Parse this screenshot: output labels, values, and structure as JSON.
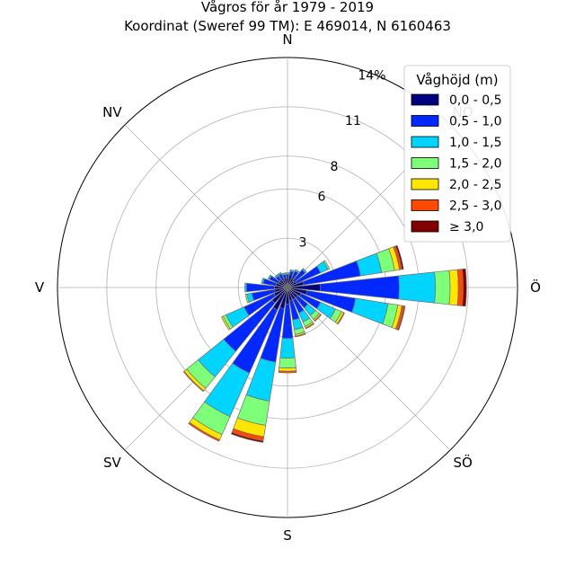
{
  "chart_data": {
    "type": "windrose",
    "title": "Vågros för år 1979 - 2019",
    "subtitle": "Koordinat (Sweref 99 TM): E 469014, N 6160463",
    "directions": [
      "N",
      "NV",
      "V",
      "SV",
      "S",
      "SÖ",
      "Ö",
      "NÖ"
    ],
    "radial_ticks": [
      "3",
      "6",
      "8",
      "11",
      "14%"
    ],
    "radial_tick_values": [
      3,
      6,
      8,
      11,
      14
    ],
    "rmax": 14,
    "legend": {
      "title": "Våghöjd (m)",
      "placement": "top-right",
      "entries": [
        "0,0 - 0,5",
        "0,5 - 1,0",
        "1,0 - 1,5",
        "1,5 - 2,0",
        "2,0 - 2,5",
        "2,5 - 3,0",
        "≥ 3,0"
      ]
    },
    "colors": [
      "#00007f",
      "#0028ff",
      "#00d4ff",
      "#7dff7a",
      "#ffe600",
      "#ff4800",
      "#800000"
    ],
    "sectors_deg_from_north_clockwise": [
      0,
      15,
      30,
      45,
      60,
      75,
      90,
      105,
      120,
      135,
      150,
      165,
      180,
      195,
      210,
      225,
      240,
      255,
      270,
      285,
      300,
      315,
      330,
      345
    ],
    "series": [
      {
        "name": "0,0 - 0,5",
        "values": [
          0.6,
          0.8,
          0.6,
          0.5,
          0.6,
          1.0,
          2.0,
          1.2,
          0.9,
          0.8,
          0.8,
          0.8,
          1.0,
          1.3,
          1.5,
          1.2,
          0.9,
          0.8,
          0.8,
          0.7,
          0.6,
          0.6,
          0.5,
          0.6
        ]
      },
      {
        "name": "0,5 - 1,0",
        "values": [
          0.2,
          0.2,
          0.5,
          0.9,
          1.6,
          3.5,
          4.8,
          3.0,
          1.3,
          0.8,
          0.9,
          1.2,
          2.1,
          3.3,
          4.2,
          3.8,
          2.0,
          1.4,
          1.7,
          0.8,
          0.6,
          0.3,
          0.4,
          0.2
        ]
      },
      {
        "name": "1,0 - 1,5",
        "values": [
          0.1,
          0.1,
          0.1,
          0.1,
          0.5,
          1.3,
          2.2,
          2.0,
          1.0,
          0.6,
          0.6,
          0.6,
          1.2,
          2.4,
          2.9,
          2.0,
          1.2,
          0.3,
          0.1,
          0.1,
          0.1,
          0.1,
          0.1,
          0.1
        ]
      },
      {
        "name": "1,5 - 2,0",
        "values": [
          0,
          0,
          0,
          0,
          0.1,
          0.8,
          0.9,
          0.6,
          0.4,
          0.3,
          0.3,
          0.3,
          0.6,
          1.5,
          1.2,
          0.9,
          0.2,
          0.1,
          0,
          0,
          0,
          0,
          0,
          0
        ]
      },
      {
        "name": "2,0 - 2,5",
        "values": [
          0,
          0,
          0,
          0,
          0,
          0.3,
          0.5,
          0.25,
          0.15,
          0.1,
          0.1,
          0.1,
          0.2,
          0.7,
          0.35,
          0.2,
          0.1,
          0,
          0,
          0,
          0,
          0,
          0,
          0
        ]
      },
      {
        "name": "2,5 - 3,0",
        "values": [
          0,
          0,
          0,
          0,
          0,
          0.15,
          0.3,
          0.15,
          0.05,
          0.05,
          0.05,
          0.05,
          0.1,
          0.25,
          0.1,
          0.05,
          0,
          0,
          0,
          0,
          0,
          0,
          0,
          0
        ]
      },
      {
        "name": "≥ 3,0",
        "values": [
          0,
          0,
          0,
          0,
          0,
          0.1,
          0.2,
          0.05,
          0,
          0,
          0,
          0,
          0,
          0.1,
          0,
          0,
          0,
          0,
          0,
          0,
          0,
          0,
          0,
          0
        ]
      }
    ]
  }
}
